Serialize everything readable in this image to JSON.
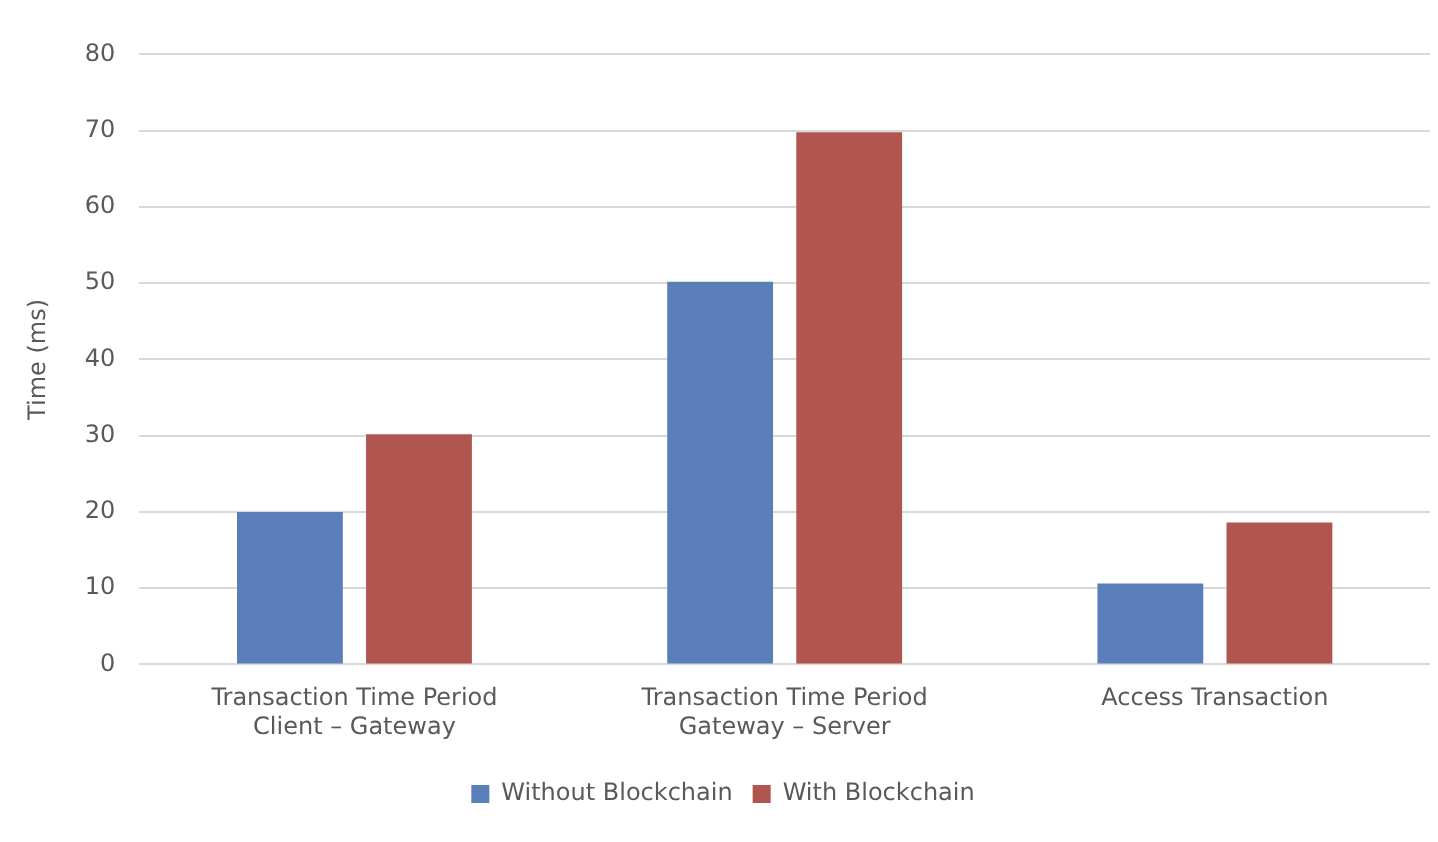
{
  "chart_data": {
    "type": "bar",
    "ylabel": "Time (ms)",
    "categories": [
      "Transaction Time Period\nClient – Gateway",
      "Transaction Time Period\nGateway – Server",
      "Access Transaction"
    ],
    "series": [
      {
        "name": "Without Blockchain",
        "color": "#5a7fb8",
        "values": [
          20,
          50.2,
          10.6
        ]
      },
      {
        "name": "With Blockchain",
        "color": "#b0554f",
        "values": [
          30.2,
          69.8,
          18.6
        ]
      }
    ],
    "ylim": [
      0,
      80
    ],
    "yticks": [
      0,
      10,
      20,
      30,
      40,
      50,
      60,
      70,
      80
    ],
    "grid": "y",
    "legend": "bottom"
  }
}
